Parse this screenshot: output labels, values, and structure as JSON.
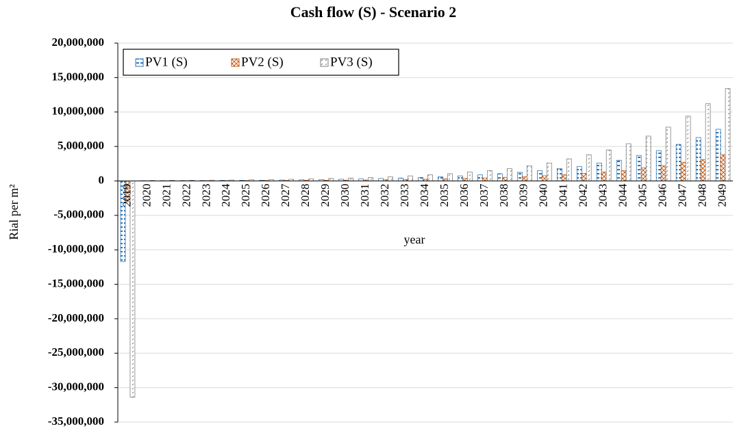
{
  "chart_data": {
    "type": "bar",
    "title": "Cash flow (S) - Scenario 2",
    "x_label": "year",
    "y_label": "Rial per m²",
    "categories": [
      "2019",
      "2020",
      "2021",
      "2022",
      "2023",
      "2024",
      "2025",
      "2026",
      "2027",
      "2028",
      "2029",
      "2030",
      "2031",
      "2032",
      "2033",
      "2034",
      "2035",
      "2036",
      "2037",
      "2038",
      "2039",
      "2040",
      "2041",
      "2042",
      "2043",
      "2044",
      "2045",
      "2046",
      "2047",
      "2048",
      "2049"
    ],
    "series": [
      {
        "name": "PV1 (S)",
        "color": "#2e75b6",
        "values": [
          -11700000,
          30000,
          40000,
          50000,
          60000,
          75000,
          90000,
          110000,
          140000,
          170000,
          200000,
          240000,
          290000,
          350000,
          420000,
          500000,
          610000,
          730000,
          880000,
          1050000,
          1250000,
          1500000,
          1800000,
          2100000,
          2600000,
          3000000,
          3700000,
          4400000,
          5300000,
          6300000,
          7500000
        ]
      },
      {
        "name": "PV2 (S)",
        "color": "#c55a11",
        "values": [
          -3000000,
          15000,
          20000,
          25000,
          30000,
          40000,
          50000,
          60000,
          70000,
          80000,
          100000,
          120000,
          140000,
          170000,
          210000,
          250000,
          300000,
          360000,
          430000,
          520000,
          620000,
          750000,
          900000,
          1100000,
          1300000,
          1500000,
          1900000,
          2200000,
          2700000,
          3100000,
          3800000
        ]
      },
      {
        "name": "PV3 (S)",
        "color": "#7f7f7f",
        "values": [
          -31400000,
          70000,
          80000,
          100000,
          120000,
          140000,
          170000,
          200000,
          240000,
          290000,
          350000,
          420000,
          500000,
          600000,
          730000,
          880000,
          1050000,
          1300000,
          1500000,
          1800000,
          2200000,
          2600000,
          3200000,
          3800000,
          4500000,
          5400000,
          6500000,
          7800000,
          9400000,
          11200000,
          13400000
        ]
      }
    ],
    "ylim": [
      -35000000,
      20000000
    ],
    "yticks": [
      {
        "value": -35000000,
        "label": "-35,000,000"
      },
      {
        "value": -30000000,
        "label": "-30,000,000"
      },
      {
        "value": -25000000,
        "label": "-25,000,000"
      },
      {
        "value": -20000000,
        "label": "-20,000,000"
      },
      {
        "value": -15000000,
        "label": "-15,000,000"
      },
      {
        "value": -10000000,
        "label": "-10,000,000"
      },
      {
        "value": -5000000,
        "label": "-5,000,000"
      },
      0,
      {
        "value": 5000000,
        "label": "5,000,000"
      },
      {
        "value": 10000000,
        "label": "10,000,000"
      },
      {
        "value": 15000000,
        "label": "15,000,000"
      },
      {
        "value": 20000000,
        "label": "20,000,000"
      }
    ],
    "grid": true,
    "legend": "top-left"
  }
}
